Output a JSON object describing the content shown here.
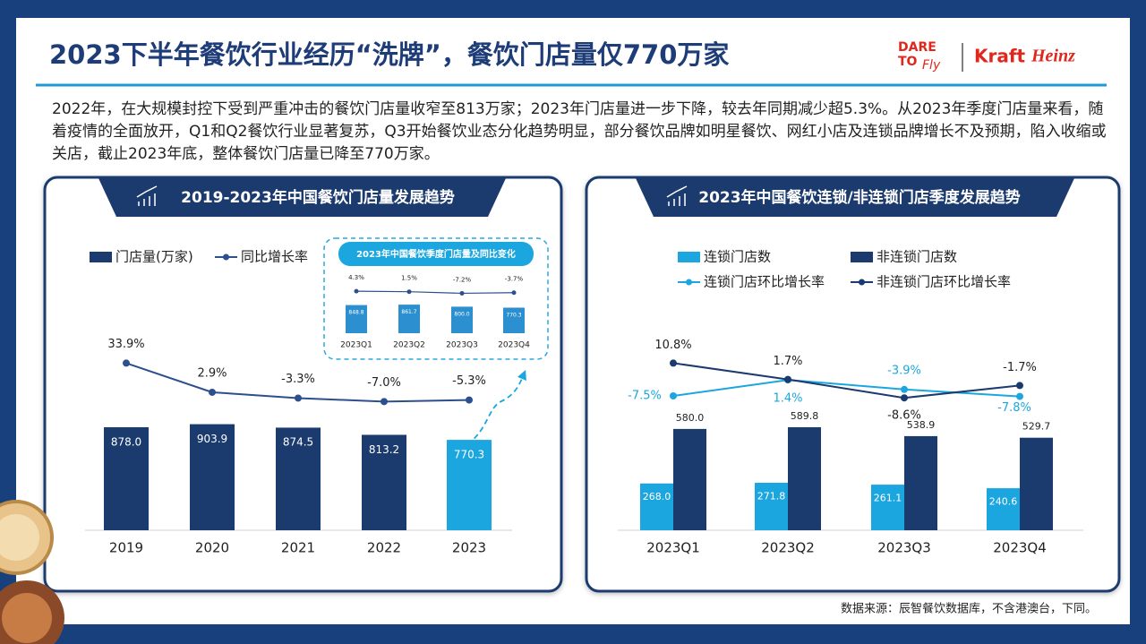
{
  "header": {
    "title": "2023下半年餐饮行业经历“洗牌”，餐饮门店量仅770万家",
    "logo": {
      "dare": "DARE",
      "to": "TO",
      "fly": "Fly",
      "kraft": "Kraft",
      "heinz": "Heinz"
    }
  },
  "intro": "2022年，在大规模封控下受到严重冲击的餐饮门店量收窄至813万家；2023年门店量进一步下降，较去年同期减少超5.3%。从2023年季度门店量来看，随着疫情的全面放开，Q1和Q2餐饮行业显著复苏，Q3开始餐饮业态分化趋势明显，部分餐饮品牌如明星餐饮、网红小店及连锁品牌增长不及预期，陷入收缩或关店，截止2023年底，整体餐饮门店量已降至770万家。",
  "chart_data": [
    {
      "type": "bar-line",
      "title": "2019-2023年中国餐饮门店量发展趋势",
      "categories": [
        "2019",
        "2020",
        "2021",
        "2022",
        "2023"
      ],
      "series": [
        {
          "name": "门店量(万家)",
          "kind": "bar",
          "color": "#1b3a6e",
          "colors": [
            "#1b3a6e",
            "#1b3a6e",
            "#1b3a6e",
            "#1b3a6e",
            "#1ba6df"
          ],
          "values": [
            878.0,
            903.9,
            874.5,
            813.2,
            770.3
          ],
          "value_labels": [
            "878.0",
            "903.9",
            "874.5",
            "813.2",
            "770.3"
          ]
        },
        {
          "name": "同比增长率",
          "kind": "line",
          "color": "#2c4f8e",
          "values": [
            33.9,
            2.9,
            -3.3,
            -7.0,
            -5.3
          ],
          "value_labels": [
            "33.9%",
            "2.9%",
            "-3.3%",
            "-7.0%",
            "-5.3%"
          ]
        }
      ]
    },
    {
      "type": "bar-line",
      "title": "2023年中国餐饮季度门店量及同比变化",
      "categories": [
        "2023Q1",
        "2023Q2",
        "2023Q3",
        "2023Q4"
      ],
      "series": [
        {
          "kind": "bar",
          "color": "#2b8fd0",
          "values": [
            848.8,
            861.7,
            800.0,
            770.3
          ],
          "value_labels": [
            "848.8",
            "861.7",
            "800.0",
            "770.3"
          ]
        },
        {
          "kind": "line",
          "color": "#2c4f8e",
          "values": [
            4.3,
            1.5,
            -7.2,
            -3.7
          ],
          "value_labels": [
            "4.3%",
            "1.5%",
            "-7.2%",
            "-3.7%"
          ]
        }
      ]
    },
    {
      "type": "bar-line",
      "title": "2023年中国餐饮连锁/非连锁门店季度发展趋势",
      "categories": [
        "2023Q1",
        "2023Q2",
        "2023Q3",
        "2023Q4"
      ],
      "series": [
        {
          "name": "连锁门店数",
          "kind": "bar",
          "color": "#1ba6df",
          "values": [
            268.0,
            271.8,
            261.1,
            240.6
          ],
          "value_labels": [
            "268.0",
            "271.8",
            "261.1",
            "240.6"
          ]
        },
        {
          "name": "非连锁门店数",
          "kind": "bar",
          "color": "#1b3a6e",
          "values": [
            580.0,
            589.8,
            538.9,
            529.7
          ],
          "value_labels": [
            "580.0",
            "589.8",
            "538.9",
            "529.7"
          ]
        },
        {
          "name": "连锁门店环比增长率",
          "kind": "line",
          "color": "#1ba6df",
          "values": [
            -7.5,
            1.4,
            -3.9,
            -7.8
          ],
          "value_labels": [
            "-7.5%",
            "1.4%",
            "-3.9%",
            "-7.8%"
          ]
        },
        {
          "name": "非连锁门店环比增长率",
          "kind": "line",
          "color": "#1b3a6e",
          "values": [
            10.8,
            1.7,
            -8.6,
            -1.7
          ],
          "value_labels": [
            "10.8%",
            "1.7%",
            "-8.6%",
            "-1.7%"
          ]
        }
      ]
    }
  ],
  "source": "数据来源：辰智餐饮数据库，不含港澳台，下同。"
}
